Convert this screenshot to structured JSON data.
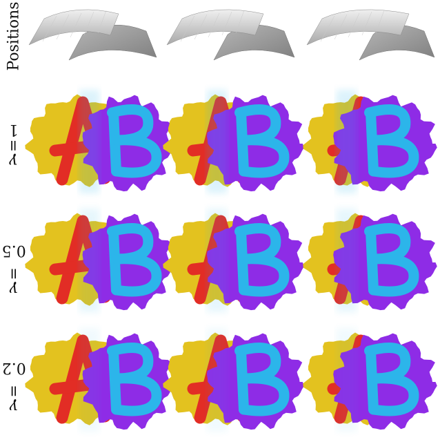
{
  "figure": {
    "rows": [
      {
        "label": "Positions",
        "kind": "positions"
      },
      {
        "label_symbol": "γ",
        "label_value": "1",
        "kind": "blend",
        "blend": [
          0.15,
          0.45,
          0.75
        ]
      },
      {
        "label_symbol": "γ",
        "label_value": "0.5",
        "kind": "blend",
        "blend": [
          0.15,
          0.45,
          0.75
        ]
      },
      {
        "label_symbol": "γ",
        "label_value": "0.2",
        "kind": "blend",
        "blend": [
          0.15,
          0.45,
          0.75
        ]
      }
    ],
    "columns": 3,
    "letters": {
      "left": "A",
      "right": "B"
    },
    "colors": {
      "yellow": "#e3c21f",
      "purple": "#8e2ce6",
      "red": "#e22d25",
      "cyan": "#2cb5ea",
      "surface_light": "#d9d9d9",
      "surface_dark": "#8f8f8f"
    }
  }
}
